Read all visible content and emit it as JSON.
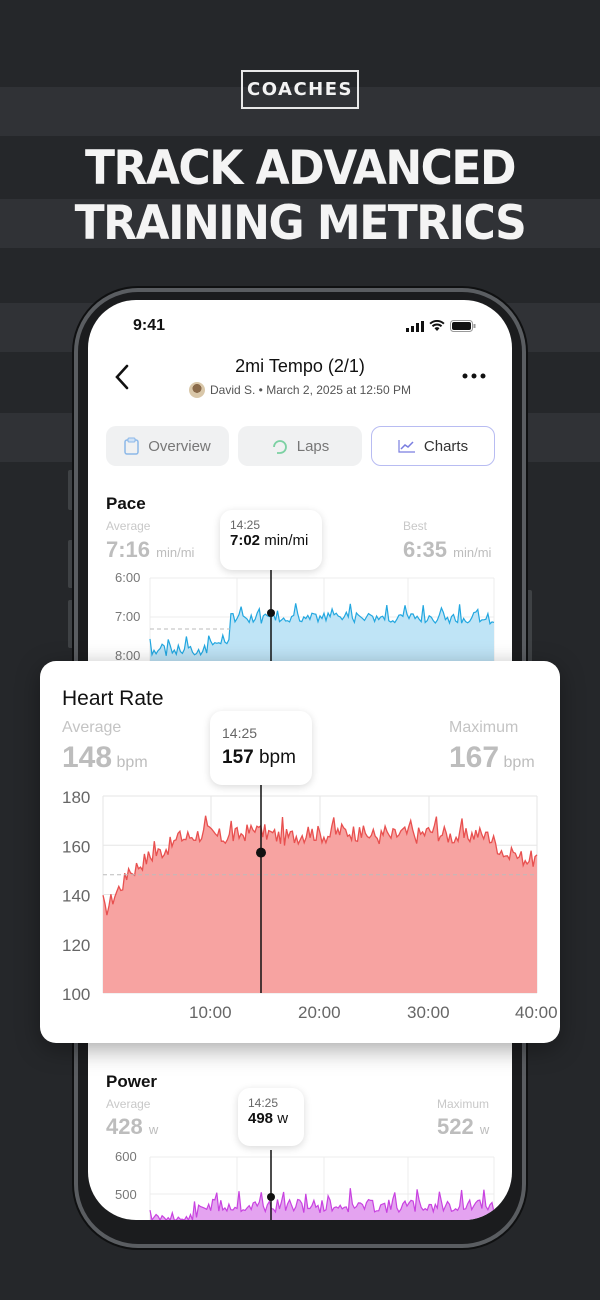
{
  "promo": {
    "badge": "COACHES",
    "headline_line1": "TRACK ADVANCED",
    "headline_line2": "TRAINING METRICS"
  },
  "status_bar": {
    "time": "9:41"
  },
  "workout": {
    "title": "2mi Tempo (2/1)",
    "subtitle": "David S. • March 2, 2025 at 12:50 PM"
  },
  "tabs": [
    {
      "label": "Overview"
    },
    {
      "label": "Laps"
    },
    {
      "label": "Charts",
      "active": true
    }
  ],
  "pace": {
    "title": "Pace",
    "average_label": "Average",
    "average_value": "7:16",
    "average_unit": "min/mi",
    "best_label": "Best",
    "best_value": "6:35",
    "best_unit": "min/mi",
    "tooltip_time": "14:25",
    "tooltip_value": "7:02",
    "tooltip_unit": "min/mi",
    "y_ticks": [
      "6:00",
      "7:00",
      "8:00"
    ]
  },
  "heart_rate": {
    "title": "Heart Rate",
    "average_label": "Average",
    "average_value": "148",
    "average_unit": "bpm",
    "max_label": "Maximum",
    "max_value": "167",
    "max_unit": "bpm",
    "tooltip_time": "14:25",
    "tooltip_value": "157",
    "tooltip_unit": "bpm",
    "y_ticks": [
      "180",
      "160",
      "140",
      "120",
      "100"
    ],
    "x_ticks": [
      "10:00",
      "20:00",
      "30:00",
      "40:00"
    ]
  },
  "power": {
    "title": "Power",
    "average_label": "Average",
    "average_value": "428",
    "average_unit": "w",
    "max_label": "Maximum",
    "max_value": "522",
    "max_unit": "w",
    "tooltip_time": "14:25",
    "tooltip_value": "498",
    "tooltip_unit": "w",
    "y_ticks": [
      "600",
      "500"
    ]
  },
  "colors": {
    "pace": "#22a7e0",
    "heart_rate": "#e8504f",
    "power": "#c842e0",
    "accent": "#6f73e0"
  },
  "chart_data": [
    {
      "type": "area",
      "title": "Heart Rate",
      "ylabel": "bpm",
      "ylim": [
        100,
        180
      ],
      "x_ticks": [
        "10:00",
        "20:00",
        "30:00",
        "40:00"
      ],
      "series": [
        {
          "values": [
            132,
            142,
            150,
            155,
            158,
            162,
            164,
            165,
            163,
            164,
            166,
            165,
            163,
            164,
            165,
            164,
            166,
            165,
            164,
            163,
            165,
            164,
            166,
            164,
            163,
            165,
            162,
            156,
            155,
            154
          ]
        }
      ],
      "average": 148,
      "marker": {
        "time": "14:25",
        "value": 157
      }
    },
    {
      "type": "area",
      "title": "Pace",
      "ylim": [
        "6:00",
        "8:00"
      ],
      "marker": {
        "time": "14:25",
        "value": "7:02"
      }
    },
    {
      "type": "area",
      "title": "Power",
      "ylim": [
        500,
        600
      ],
      "marker": {
        "time": "14:25",
        "value": 498
      }
    }
  ]
}
